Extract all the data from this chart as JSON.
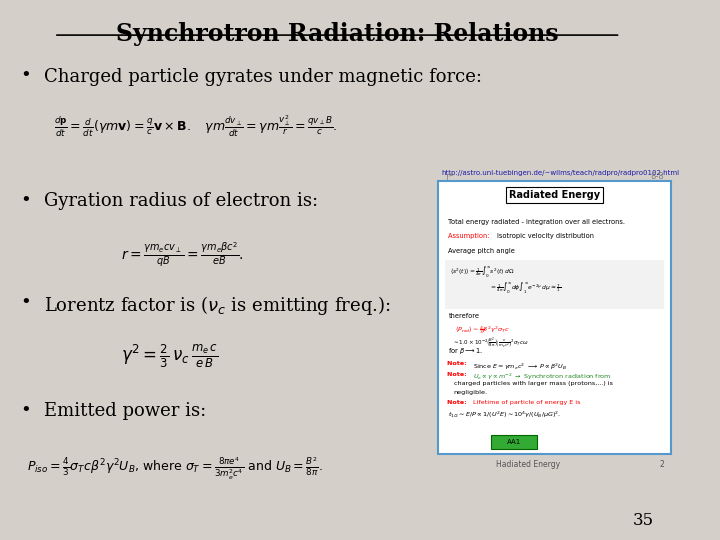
{
  "title": "Synchrotron Radiation: Relations",
  "background_color": "#d4cfc8",
  "title_color": "#000000",
  "text_color": "#000000",
  "slide_number": "35",
  "bullet1": "Charged particle gyrates under magnetic force:",
  "eq1": "$\\frac{d\\mathbf{p}}{dt} = \\frac{d}{dt}(\\gamma m \\mathbf{v}) = \\frac{q}{c}\\mathbf{v}\\times\\mathbf{B}. \\quad \\gamma m\\frac{dv_\\perp}{dt} = \\gamma m\\frac{v_\\perp^2}{r} = \\frac{qv_\\perp B}{c}.$",
  "url_text": "http://astro.uni-tuebingen.de/~wilms/teach/radpro/radpro0102.html",
  "bullet2": "Gyration radius of electron is:",
  "eq2": "$r = \\frac{\\gamma m_e c v_\\perp}{qB} = \\frac{\\gamma m_e \\beta c^2}{eB}.$",
  "bullet3": "Lorentz factor is ($\\nu_c$ is emitting freq.):",
  "eq3": "$\\gamma^2 = \\frac{2}{3}\\,\\nu_c\\,\\frac{m_e\\,c}{e\\,B}$",
  "bullet4": "Emitted power is:",
  "eq4": "$P_{iso} = \\frac{4}{3}\\sigma_T c\\beta^2\\gamma^2 U_B$, where $\\sigma_T = \\frac{8\\pi e^4}{3m_e^2 c^4}$ and $U_B = \\frac{B^2}{8\\pi}$.",
  "inset_title": "Radiated Energy",
  "inset_subtitle": "8-8",
  "inset_line1": "Total energy radiated - integration over all electrons.",
  "inset_line2_red": "Assumption: ",
  "inset_line2_black": "Isotropic velocity distribution",
  "inset_line3": "Average pitch angle",
  "url_color": "#1a1aaa"
}
